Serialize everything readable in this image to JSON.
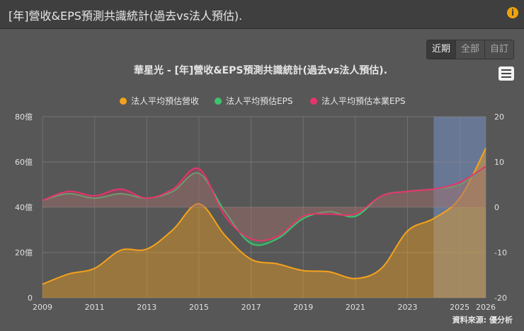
{
  "header": {
    "title": "[年]營收&EPS預測共識統計(過去vs法人預估)."
  },
  "buttons": {
    "recent": "近期",
    "all": "全部",
    "custom": "自訂",
    "active": "近期"
  },
  "footer": {
    "source": "資料來源: 優分析"
  },
  "chart_data": {
    "type": "area",
    "title": "華星光 - [年]營收&EPS預測共識統計(過去vs法人預估).",
    "left_axis": {
      "ticks": [
        "0",
        "20億",
        "40億",
        "60億",
        "80億"
      ],
      "range": [
        0,
        80
      ],
      "unit": "億"
    },
    "right_axis": {
      "ticks": [
        "-20",
        "-10",
        "0",
        "10",
        "20"
      ],
      "range": [
        -20,
        20
      ]
    },
    "x_ticks": [
      "2009",
      "2011",
      "2013",
      "2015",
      "2017",
      "2019",
      "2021",
      "2023",
      "2025",
      "2026"
    ],
    "x_range": [
      2009,
      2026
    ],
    "forecast_region": [
      2024,
      2026
    ],
    "grid": true,
    "legend_position": "top-center",
    "series": [
      {
        "name": "法人平均預估營收",
        "axis": "left",
        "color": "#f5a21b",
        "x": [
          2009,
          2010,
          2011,
          2012,
          2013,
          2014,
          2015,
          2016,
          2017,
          2018,
          2019,
          2020,
          2021,
          2022,
          2023,
          2024,
          2025,
          2026
        ],
        "values": [
          6,
          10.5,
          13,
          21,
          21.5,
          30,
          41.5,
          27.5,
          17,
          15,
          12,
          11.5,
          8.5,
          13,
          29.5,
          35,
          44,
          66
        ]
      },
      {
        "name": "法人平均預估EPS",
        "axis": "right",
        "color": "#3dc46e",
        "x": [
          2009,
          2010,
          2011,
          2012,
          2013,
          2014,
          2015,
          2016,
          2017,
          2018,
          2019,
          2020,
          2021,
          2022,
          2023,
          2024,
          2025,
          2026
        ],
        "values": [
          1.5,
          3,
          2,
          3,
          2,
          3.5,
          7.5,
          -1,
          -8,
          -7,
          -2.5,
          -1,
          -2,
          2.5,
          3.5,
          4,
          5,
          9
        ]
      },
      {
        "name": "法人平均預估本業EPS",
        "axis": "right",
        "color": "#e8336c",
        "x": [
          2009,
          2010,
          2011,
          2012,
          2013,
          2014,
          2015,
          2016,
          2017,
          2018,
          2019,
          2020,
          2021,
          2022,
          2023,
          2024,
          2025,
          2026
        ],
        "values": [
          1.5,
          3.5,
          2.5,
          4,
          2,
          4,
          8.5,
          -2,
          -7,
          -6.5,
          -2,
          -1.5,
          -1.5,
          2.5,
          3.5,
          4,
          5.5,
          9
        ]
      }
    ]
  }
}
